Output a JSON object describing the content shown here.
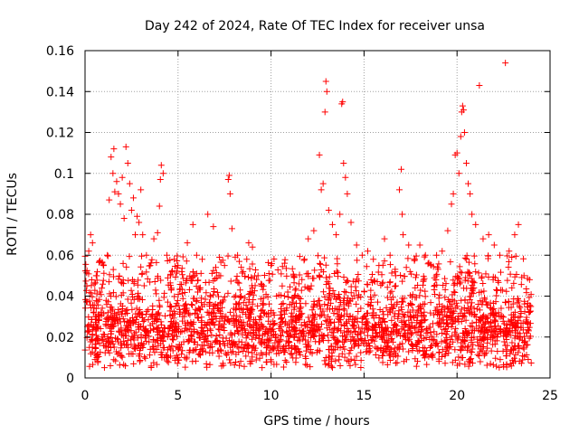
{
  "chart_data": {
    "type": "scatter",
    "title": "Day 242 of 2024, Rate Of TEC Index for receiver unsa",
    "xlabel": "GPS time / hours",
    "ylabel": "ROTI / TECUs",
    "xlim": [
      0,
      25
    ],
    "ylim": [
      0,
      0.16
    ],
    "xticks": [
      "0",
      "5",
      "10",
      "15",
      "20",
      "25"
    ],
    "yticks": [
      "0",
      "0.02",
      "0.04",
      "0.06",
      "0.08",
      "0.1",
      "0.12",
      "0.14",
      "0.16"
    ],
    "grid": true,
    "marker": "+",
    "color": "#ff0000",
    "series": [
      {
        "points": [
          [
            0.1,
            0.045
          ],
          [
            0.2,
            0.062
          ],
          [
            0.3,
            0.07
          ],
          [
            0.4,
            0.066
          ],
          [
            0.6,
            0.05
          ],
          [
            0.8,
            0.042
          ],
          [
            1.0,
            0.055
          ],
          [
            1.2,
            0.06
          ],
          [
            1.3,
            0.087
          ],
          [
            1.4,
            0.108
          ],
          [
            1.5,
            0.1
          ],
          [
            1.55,
            0.112
          ],
          [
            1.6,
            0.091
          ],
          [
            1.7,
            0.096
          ],
          [
            1.8,
            0.09
          ],
          [
            1.9,
            0.085
          ],
          [
            2.0,
            0.098
          ],
          [
            2.1,
            0.078
          ],
          [
            2.2,
            0.113
          ],
          [
            2.3,
            0.105
          ],
          [
            2.4,
            0.095
          ],
          [
            2.5,
            0.082
          ],
          [
            2.6,
            0.088
          ],
          [
            2.7,
            0.07
          ],
          [
            2.8,
            0.079
          ],
          [
            2.9,
            0.076
          ],
          [
            3.0,
            0.092
          ],
          [
            3.1,
            0.07
          ],
          [
            3.3,
            0.06
          ],
          [
            3.5,
            0.055
          ],
          [
            3.7,
            0.068
          ],
          [
            3.9,
            0.071
          ],
          [
            4.0,
            0.084
          ],
          [
            4.05,
            0.097
          ],
          [
            4.1,
            0.104
          ],
          [
            4.2,
            0.1
          ],
          [
            4.4,
            0.06
          ],
          [
            4.6,
            0.05
          ],
          [
            4.8,
            0.058
          ],
          [
            5.0,
            0.055
          ],
          [
            5.2,
            0.052
          ],
          [
            5.5,
            0.066
          ],
          [
            5.8,
            0.075
          ],
          [
            6.0,
            0.06
          ],
          [
            6.3,
            0.058
          ],
          [
            6.6,
            0.08
          ],
          [
            6.9,
            0.074
          ],
          [
            7.2,
            0.05
          ],
          [
            7.5,
            0.055
          ],
          [
            7.7,
            0.097
          ],
          [
            7.75,
            0.099
          ],
          [
            7.8,
            0.09
          ],
          [
            7.9,
            0.073
          ],
          [
            8.2,
            0.06
          ],
          [
            8.5,
            0.052
          ],
          [
            8.8,
            0.066
          ],
          [
            9.0,
            0.064
          ],
          [
            9.3,
            0.05
          ],
          [
            9.6,
            0.045
          ],
          [
            10.0,
            0.055
          ],
          [
            10.3,
            0.04
          ],
          [
            10.6,
            0.045
          ],
          [
            10.9,
            0.042
          ],
          [
            11.2,
            0.05
          ],
          [
            11.5,
            0.046
          ],
          [
            11.8,
            0.058
          ],
          [
            12.0,
            0.068
          ],
          [
            12.3,
            0.072
          ],
          [
            12.6,
            0.109
          ],
          [
            12.7,
            0.092
          ],
          [
            12.8,
            0.095
          ],
          [
            12.9,
            0.13
          ],
          [
            12.95,
            0.145
          ],
          [
            13.0,
            0.14
          ],
          [
            13.1,
            0.082
          ],
          [
            13.3,
            0.075
          ],
          [
            13.5,
            0.07
          ],
          [
            13.7,
            0.08
          ],
          [
            13.8,
            0.134
          ],
          [
            13.85,
            0.135
          ],
          [
            13.9,
            0.105
          ],
          [
            14.0,
            0.098
          ],
          [
            14.1,
            0.09
          ],
          [
            14.3,
            0.076
          ],
          [
            14.6,
            0.065
          ],
          [
            14.9,
            0.06
          ],
          [
            15.2,
            0.062
          ],
          [
            15.5,
            0.058
          ],
          [
            15.8,
            0.055
          ],
          [
            16.1,
            0.068
          ],
          [
            16.4,
            0.06
          ],
          [
            16.7,
            0.05
          ],
          [
            16.9,
            0.092
          ],
          [
            17.0,
            0.102
          ],
          [
            17.05,
            0.08
          ],
          [
            17.1,
            0.07
          ],
          [
            17.4,
            0.065
          ],
          [
            17.7,
            0.058
          ],
          [
            18.0,
            0.065
          ],
          [
            18.3,
            0.06
          ],
          [
            18.6,
            0.055
          ],
          [
            18.9,
            0.06
          ],
          [
            19.2,
            0.062
          ],
          [
            19.5,
            0.072
          ],
          [
            19.7,
            0.085
          ],
          [
            19.8,
            0.09
          ],
          [
            19.9,
            0.109
          ],
          [
            20.0,
            0.11
          ],
          [
            20.1,
            0.1
          ],
          [
            20.2,
            0.118
          ],
          [
            20.25,
            0.13
          ],
          [
            20.3,
            0.133
          ],
          [
            20.35,
            0.131
          ],
          [
            20.4,
            0.12
          ],
          [
            20.5,
            0.105
          ],
          [
            20.6,
            0.095
          ],
          [
            20.7,
            0.09
          ],
          [
            20.8,
            0.08
          ],
          [
            21.0,
            0.075
          ],
          [
            21.2,
            0.143
          ],
          [
            21.4,
            0.068
          ],
          [
            21.7,
            0.07
          ],
          [
            22.0,
            0.065
          ],
          [
            22.3,
            0.06
          ],
          [
            22.6,
            0.154
          ],
          [
            22.8,
            0.062
          ],
          [
            23.1,
            0.07
          ],
          [
            23.3,
            0.075
          ],
          [
            23.6,
            0.05
          ],
          [
            23.9,
            0.048
          ]
        ],
        "band": {
          "description": "dense cloud of points",
          "x": [
            0,
            24
          ],
          "y_center": 0.022,
          "y_lower": 0.005,
          "y_upper": 0.045
        }
      }
    ]
  }
}
